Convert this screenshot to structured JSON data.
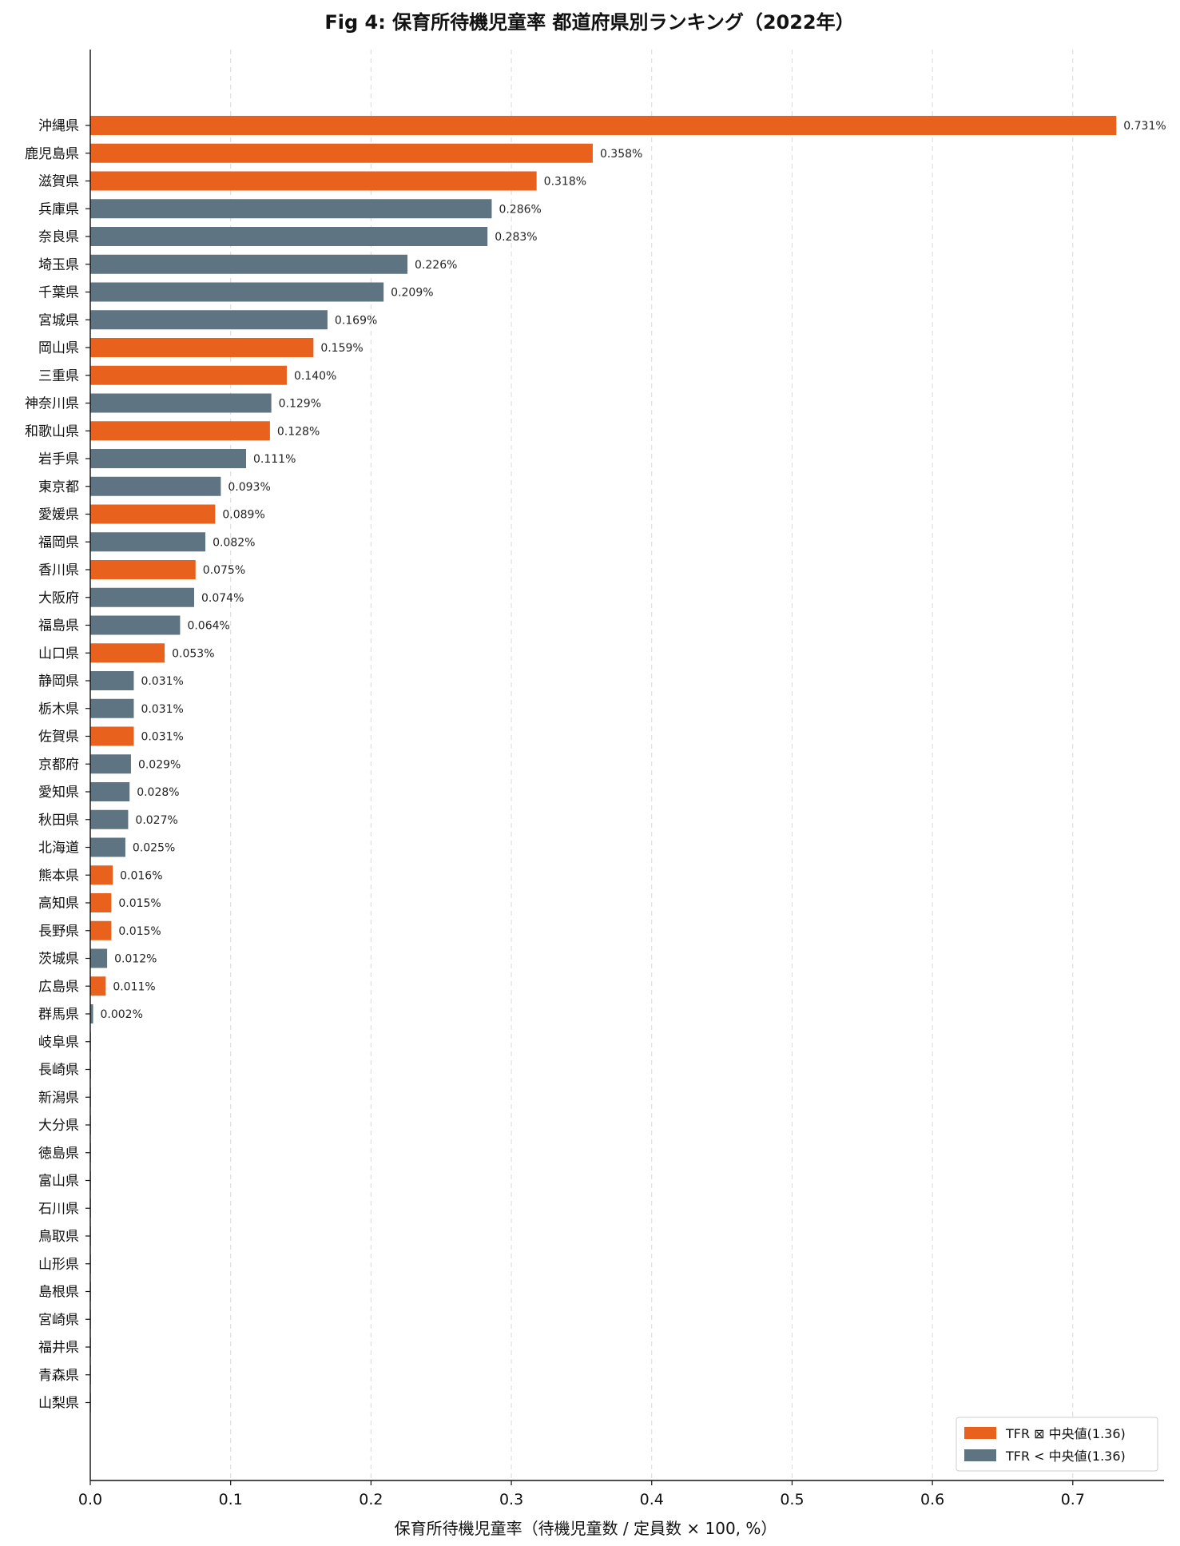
{
  "chart_data": {
    "type": "bar",
    "orientation": "horizontal",
    "title": "Fig 4: 保育所待機児童率 都道府県別ランキング（2022年）",
    "xlabel": "保育所待機児童率（待機児童数 / 定員数 × 100, %）",
    "xlim": [
      0,
      0.765
    ],
    "xticks": [
      "0.0",
      "0.1",
      "0.2",
      "0.3",
      "0.4",
      "0.5",
      "0.6",
      "0.7"
    ],
    "xtick_values": [
      0,
      0.1,
      0.2,
      0.3,
      0.4,
      0.5,
      0.6,
      0.7
    ],
    "grid": "vertical dashed",
    "legend_placement": "lower-right",
    "colors": {
      "high": "#E8621E",
      "low": "#5F7482"
    },
    "legend": [
      {
        "label": "TFR ⊠ 中央値(1.36)",
        "group": "high"
      },
      {
        "label": "TFR < 中央値(1.36)",
        "group": "low"
      }
    ],
    "categories": [
      "沖縄県",
      "鹿児島県",
      "滋賀県",
      "兵庫県",
      "奈良県",
      "埼玉県",
      "千葉県",
      "宮城県",
      "岡山県",
      "三重県",
      "神奈川県",
      "和歌山県",
      "岩手県",
      "東京都",
      "愛媛県",
      "福岡県",
      "香川県",
      "大阪府",
      "福島県",
      "山口県",
      "静岡県",
      "栃木県",
      "佐賀県",
      "京都府",
      "愛知県",
      "秋田県",
      "北海道",
      "熊本県",
      "高知県",
      "長野県",
      "茨城県",
      "広島県",
      "群馬県",
      "岐阜県",
      "長崎県",
      "新潟県",
      "大分県",
      "徳島県",
      "富山県",
      "石川県",
      "鳥取県",
      "山形県",
      "島根県",
      "宮崎県",
      "福井県",
      "青森県",
      "山梨県"
    ],
    "values": [
      0.731,
      0.358,
      0.318,
      0.286,
      0.283,
      0.226,
      0.209,
      0.169,
      0.159,
      0.14,
      0.129,
      0.128,
      0.111,
      0.093,
      0.089,
      0.082,
      0.075,
      0.074,
      0.064,
      0.053,
      0.031,
      0.031,
      0.031,
      0.029,
      0.028,
      0.027,
      0.025,
      0.016,
      0.015,
      0.015,
      0.012,
      0.011,
      0.002,
      0,
      0,
      0,
      0,
      0,
      0,
      0,
      0,
      0,
      0,
      0,
      0,
      0,
      0
    ],
    "value_labels": [
      "0.731%",
      "0.358%",
      "0.318%",
      "0.286%",
      "0.283%",
      "0.226%",
      "0.209%",
      "0.169%",
      "0.159%",
      "0.140%",
      "0.129%",
      "0.128%",
      "0.111%",
      "0.093%",
      "0.089%",
      "0.082%",
      "0.075%",
      "0.074%",
      "0.064%",
      "0.053%",
      "0.031%",
      "0.031%",
      "0.031%",
      "0.029%",
      "0.028%",
      "0.027%",
      "0.025%",
      "0.016%",
      "0.015%",
      "0.015%",
      "0.012%",
      "0.011%",
      "0.002%",
      "",
      "",
      "",
      "",
      "",
      "",
      "",
      "",
      "",
      "",
      "",
      "",
      "",
      ""
    ],
    "groups": [
      "high",
      "high",
      "high",
      "low",
      "low",
      "low",
      "low",
      "low",
      "high",
      "high",
      "low",
      "high",
      "low",
      "low",
      "high",
      "low",
      "high",
      "low",
      "low",
      "high",
      "low",
      "low",
      "high",
      "low",
      "low",
      "low",
      "low",
      "high",
      "high",
      "high",
      "low",
      "high",
      "low",
      "low",
      "low",
      "low",
      "low",
      "low",
      "low",
      "low",
      "low",
      "low",
      "low",
      "low",
      "low",
      "low",
      "low"
    ]
  }
}
